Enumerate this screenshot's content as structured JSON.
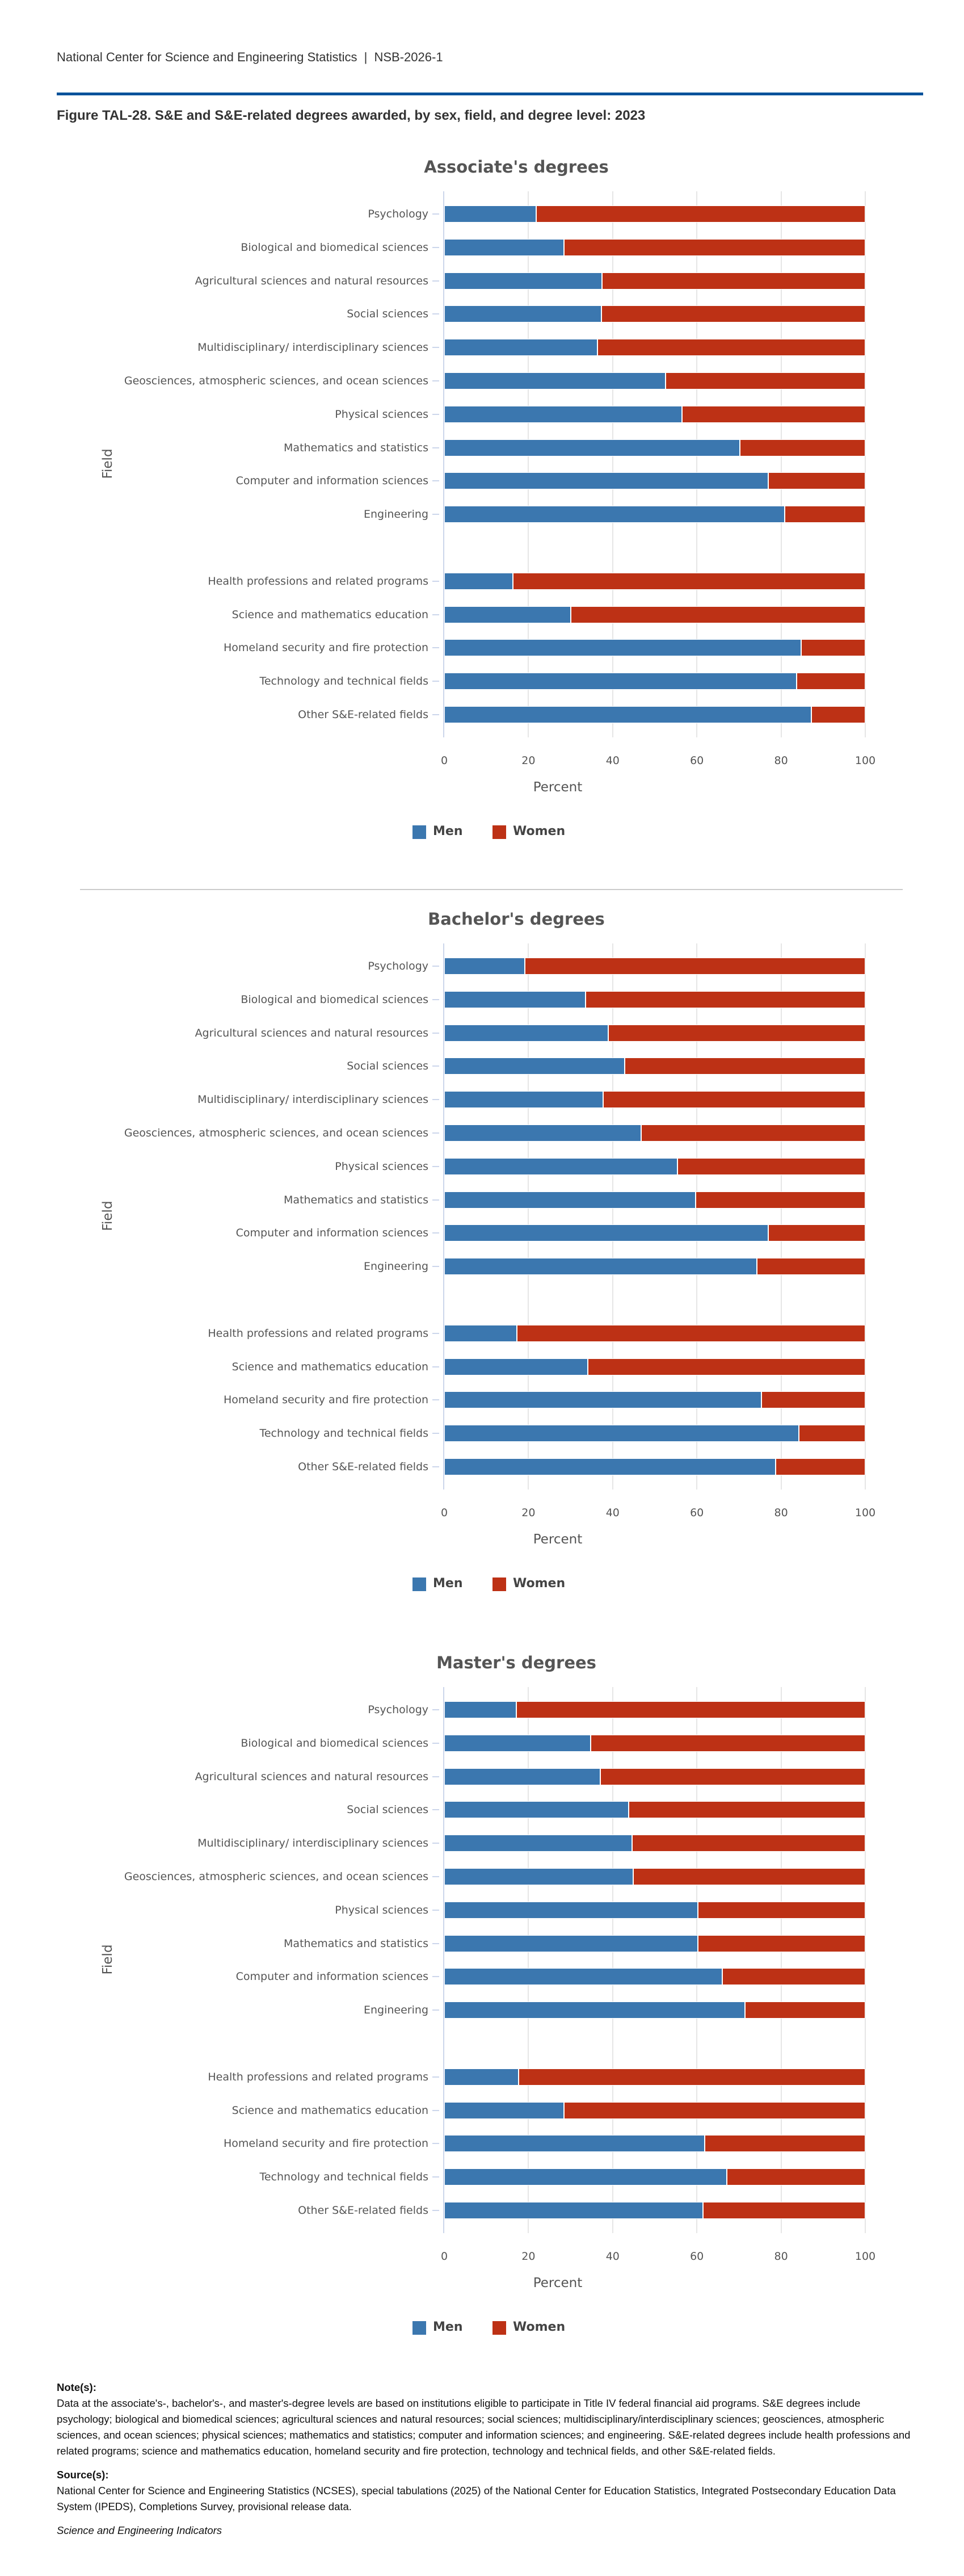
{
  "header": {
    "org": "National Center for Science and Engineering Statistics",
    "separator": "|",
    "report": "NSB-2026-1"
  },
  "figure_title": "Figure TAL-28. S&E and S&E-related degrees awarded, by sex, field, and degree level: 2023",
  "colors": {
    "men": "#3b77af",
    "women": "#bd3115",
    "rule": "#00529b"
  },
  "chart_data": [
    {
      "type": "bar",
      "orientation": "horizontal",
      "stacked": true,
      "title": "Associate's degrees",
      "xlabel": "Percent",
      "ylabel": "Field",
      "xlim": [
        0,
        100
      ],
      "xticks": [
        "0",
        "20",
        "40",
        "60",
        "80",
        "100"
      ],
      "grid": true,
      "legend": "bottom",
      "categories": [
        "Psychology",
        "Biological and biomedical sciences",
        "Agricultural sciences and natural resources",
        "Social sciences",
        "Multidisciplinary/ interdisciplinary sciences",
        "Geosciences, atmospheric sciences, and ocean sciences",
        "Physical sciences",
        "Mathematics and statistics",
        "Computer and information sciences",
        "Engineering",
        "Health professions and related programs",
        "Science and mathematics education",
        "Homeland security and fire protection",
        "Technology and technical fields",
        "Other S&E-related fields"
      ],
      "series": [
        {
          "name": "Men",
          "values": [
            21.8,
            28.4,
            37.5,
            37.3,
            36.4,
            52.5,
            56.5,
            70.2,
            76.9,
            80.8,
            16.3,
            30.1,
            84.8,
            83.7,
            87.2
          ]
        },
        {
          "name": "Women",
          "values": [
            78.2,
            71.6,
            62.5,
            62.7,
            63.6,
            47.5,
            43.5,
            29.8,
            23.1,
            19.2,
            83.7,
            69.9,
            15.2,
            16.3,
            12.8
          ]
        }
      ]
    },
    {
      "type": "bar",
      "orientation": "horizontal",
      "stacked": true,
      "title": "Bachelor's degrees",
      "xlabel": "Percent",
      "ylabel": "Field",
      "xlim": [
        0,
        100
      ],
      "xticks": [
        "0",
        "20",
        "40",
        "60",
        "80",
        "100"
      ],
      "grid": true,
      "legend": "bottom",
      "categories": [
        "Psychology",
        "Biological and biomedical sciences",
        "Agricultural sciences and natural resources",
        "Social sciences",
        "Multidisciplinary/ interdisciplinary sciences",
        "Geosciences, atmospheric sciences, and ocean sciences",
        "Physical sciences",
        "Mathematics and statistics",
        "Computer and information sciences",
        "Engineering",
        "Health professions and related programs",
        "Science and mathematics education",
        "Homeland security and fire protection",
        "Technology and technical fields",
        "Other S&E-related fields"
      ],
      "series": [
        {
          "name": "Men",
          "values": [
            19.1,
            33.6,
            39.0,
            42.9,
            37.8,
            46.7,
            55.4,
            59.7,
            76.9,
            74.3,
            17.3,
            34.1,
            75.4,
            84.2,
            78.7
          ]
        },
        {
          "name": "Women",
          "values": [
            80.9,
            66.4,
            61.0,
            57.1,
            62.2,
            53.3,
            44.6,
            40.3,
            23.1,
            25.7,
            82.7,
            65.9,
            24.6,
            15.8,
            21.3
          ]
        }
      ]
    },
    {
      "type": "bar",
      "orientation": "horizontal",
      "stacked": true,
      "title": "Master's degrees",
      "xlabel": "Percent",
      "ylabel": "Field",
      "xlim": [
        0,
        100
      ],
      "xticks": [
        "0",
        "20",
        "40",
        "60",
        "80",
        "100"
      ],
      "grid": true,
      "legend": "bottom",
      "categories": [
        "Psychology",
        "Biological and biomedical sciences",
        "Agricultural sciences and natural resources",
        "Social sciences",
        "Multidisciplinary/ interdisciplinary sciences",
        "Geosciences, atmospheric sciences, and ocean sciences",
        "Physical sciences",
        "Mathematics and statistics",
        "Computer and information sciences",
        "Engineering",
        "Health professions and related programs",
        "Science and mathematics education",
        "Homeland security and fire protection",
        "Technology and technical fields",
        "Other S&E-related fields"
      ],
      "series": [
        {
          "name": "Men",
          "values": [
            17.1,
            34.8,
            37.0,
            43.8,
            44.6,
            44.9,
            60.3,
            60.3,
            66.0,
            71.4,
            17.6,
            28.4,
            61.9,
            67.1,
            61.5
          ]
        },
        {
          "name": "Women",
          "values": [
            82.9,
            65.2,
            63.0,
            56.2,
            55.4,
            55.1,
            39.7,
            39.7,
            34.0,
            28.6,
            82.4,
            71.6,
            38.1,
            32.9,
            38.5
          ]
        }
      ]
    }
  ],
  "notes": {
    "notes_heading": "Note(s):",
    "notes_text": "Data at the associate's-, bachelor's-, and master's-degree levels are based on institutions eligible to participate in Title IV federal financial aid programs. S&E degrees include psychology; biological and biomedical sciences; agricultural sciences and natural resources; social sciences; multidisciplinary/interdisciplinary sciences; geosciences, atmospheric sciences, and ocean sciences; physical sciences; mathematics and statistics; computer and information sciences; and engineering. S&E-related degrees include health professions and related programs; science and mathematics education, homeland security and fire protection, technology and technical fields, and other S&E-related fields.",
    "source_heading": "Source(s):",
    "source_text": "National Center for Science and Engineering Statistics (NCSES), special tabulations (2025) of the National Center for Education Statistics, Integrated Postsecondary Education Data System (IPEDS), Completions Survey, provisional release data.",
    "publication": "Science and Engineering Indicators"
  }
}
